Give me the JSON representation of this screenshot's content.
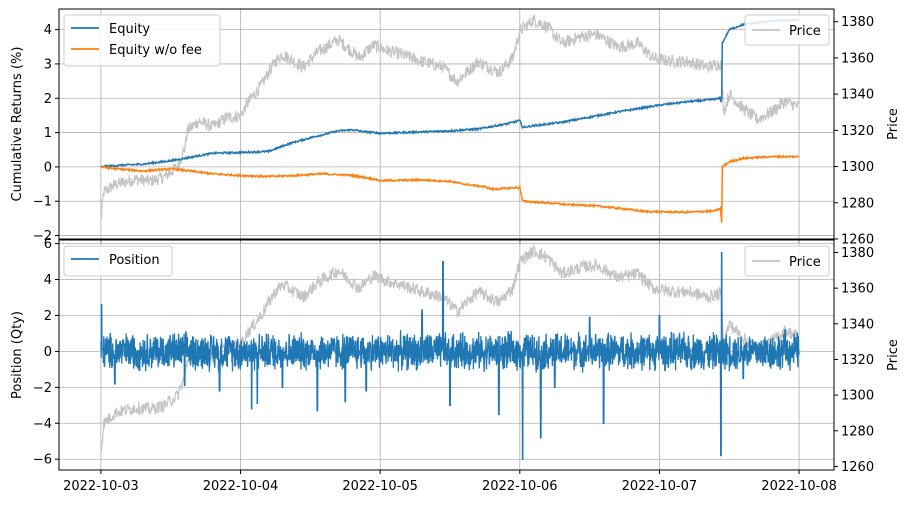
{
  "chart_data": [
    {
      "type": "line",
      "ylabel": "Cumulative Returns (%)",
      "y2label": "Price",
      "ylim": [
        -2.1,
        4.6
      ],
      "y2lim": [
        1260,
        1387
      ],
      "yticks": [
        "−2",
        "−1",
        "0",
        "1",
        "2",
        "3",
        "4"
      ],
      "yticks_values": [
        -2,
        -1,
        0,
        1,
        2,
        3,
        4
      ],
      "y2ticks": [
        "1260",
        "1280",
        "1300",
        "1320",
        "1340",
        "1360",
        "1380"
      ],
      "y2ticks_values": [
        1260,
        1280,
        1300,
        1320,
        1340,
        1360,
        1380
      ],
      "grid": true,
      "legend_left": [
        "Equity",
        "Equity w/o fee"
      ],
      "legend_right": [
        "Price"
      ],
      "legend_left_position": "upper-left",
      "legend_right_position": "upper-right",
      "series": [
        {
          "name": "Equity",
          "color": "#1f77b4",
          "axis": "left",
          "points": [
            [
              0,
              0
            ],
            [
              0.05,
              0.02
            ],
            [
              0.15,
              0.05
            ],
            [
              0.3,
              0.08
            ],
            [
              0.5,
              0.18
            ],
            [
              0.6,
              0.25
            ],
            [
              0.8,
              0.4
            ],
            [
              1.0,
              0.42
            ],
            [
              1.2,
              0.45
            ],
            [
              1.35,
              0.68
            ],
            [
              1.5,
              0.85
            ],
            [
              1.7,
              1.05
            ],
            [
              1.8,
              1.08
            ],
            [
              1.9,
              1.02
            ],
            [
              2.0,
              0.98
            ],
            [
              2.3,
              1.02
            ],
            [
              2.5,
              1.05
            ],
            [
              2.6,
              1.08
            ],
            [
              2.7,
              1.1
            ],
            [
              2.8,
              1.18
            ],
            [
              2.9,
              1.25
            ],
            [
              3.0,
              1.35
            ],
            [
              3.02,
              1.15
            ],
            [
              3.1,
              1.2
            ],
            [
              3.3,
              1.3
            ],
            [
              3.5,
              1.45
            ],
            [
              3.7,
              1.6
            ],
            [
              4.0,
              1.8
            ],
            [
              4.2,
              1.9
            ],
            [
              4.35,
              1.95
            ],
            [
              4.44,
              2.0
            ],
            [
              4.445,
              1.7
            ],
            [
              4.45,
              3.6
            ],
            [
              4.5,
              4.0
            ],
            [
              4.6,
              4.15
            ],
            [
              4.8,
              4.25
            ],
            [
              5.0,
              4.28
            ]
          ]
        },
        {
          "name": "Equity w/o fee",
          "color": "#ff7f0e",
          "axis": "left",
          "points": [
            [
              0,
              0
            ],
            [
              0.1,
              -0.05
            ],
            [
              0.3,
              -0.12
            ],
            [
              0.5,
              -0.06
            ],
            [
              0.6,
              -0.1
            ],
            [
              0.8,
              -0.2
            ],
            [
              1.0,
              -0.25
            ],
            [
              1.2,
              -0.28
            ],
            [
              1.4,
              -0.25
            ],
            [
              1.5,
              -0.22
            ],
            [
              1.6,
              -0.2
            ],
            [
              1.8,
              -0.25
            ],
            [
              1.95,
              -0.35
            ],
            [
              2.0,
              -0.4
            ],
            [
              2.3,
              -0.38
            ],
            [
              2.5,
              -0.42
            ],
            [
              2.6,
              -0.5
            ],
            [
              2.75,
              -0.58
            ],
            [
              2.8,
              -0.65
            ],
            [
              3.0,
              -0.6
            ],
            [
              3.02,
              -1.0
            ],
            [
              3.2,
              -1.05
            ],
            [
              3.35,
              -1.1
            ],
            [
              3.5,
              -1.12
            ],
            [
              3.7,
              -1.2
            ],
            [
              3.9,
              -1.3
            ],
            [
              4.2,
              -1.32
            ],
            [
              4.4,
              -1.28
            ],
            [
              4.44,
              -1.2
            ],
            [
              4.445,
              -1.95
            ],
            [
              4.45,
              0.0
            ],
            [
              4.5,
              0.15
            ],
            [
              4.6,
              0.25
            ],
            [
              4.8,
              0.3
            ],
            [
              5.0,
              0.3
            ]
          ]
        },
        {
          "name": "Price",
          "color": "#c4c4c4",
          "axis": "right",
          "points": [
            [
              0,
              1270
            ],
            [
              0.02,
              1286
            ],
            [
              0.1,
              1290
            ],
            [
              0.25,
              1293
            ],
            [
              0.35,
              1292
            ],
            [
              0.45,
              1294
            ],
            [
              0.55,
              1300
            ],
            [
              0.6,
              1310
            ],
            [
              0.62,
              1320
            ],
            [
              0.7,
              1325
            ],
            [
              0.8,
              1322
            ],
            [
              0.9,
              1327
            ],
            [
              1.0,
              1328
            ],
            [
              1.05,
              1335
            ],
            [
              1.15,
              1345
            ],
            [
              1.2,
              1352
            ],
            [
              1.25,
              1358
            ],
            [
              1.3,
              1362
            ],
            [
              1.45,
              1355
            ],
            [
              1.55,
              1363
            ],
            [
              1.7,
              1370
            ],
            [
              1.85,
              1360
            ],
            [
              1.95,
              1367
            ],
            [
              2.05,
              1364
            ],
            [
              2.15,
              1362
            ],
            [
              2.3,
              1358
            ],
            [
              2.45,
              1355
            ],
            [
              2.55,
              1347
            ],
            [
              2.7,
              1358
            ],
            [
              2.85,
              1352
            ],
            [
              2.95,
              1360
            ],
            [
              3.0,
              1375
            ],
            [
              3.1,
              1381
            ],
            [
              3.2,
              1377
            ],
            [
              3.3,
              1368
            ],
            [
              3.45,
              1372
            ],
            [
              3.55,
              1373
            ],
            [
              3.7,
              1366
            ],
            [
              3.85,
              1368
            ],
            [
              3.95,
              1360
            ],
            [
              4.1,
              1358
            ],
            [
              4.2,
              1358
            ],
            [
              4.35,
              1355
            ],
            [
              4.44,
              1357
            ],
            [
              4.46,
              1330
            ],
            [
              4.5,
              1340
            ],
            [
              4.6,
              1332
            ],
            [
              4.7,
              1326
            ],
            [
              4.8,
              1330
            ],
            [
              4.9,
              1336
            ],
            [
              5.0,
              1333
            ]
          ]
        }
      ]
    },
    {
      "type": "line",
      "ylabel": "Position (Qty)",
      "y2label": "Price",
      "ylim": [
        -6.6,
        6.2
      ],
      "y2lim": [
        1258,
        1387
      ],
      "yticks": [
        "−6",
        "−4",
        "−2",
        "0",
        "2",
        "4",
        "6"
      ],
      "yticks_values": [
        -6,
        -4,
        -2,
        0,
        2,
        4,
        6
      ],
      "y2ticks": [
        "1260",
        "1280",
        "1300",
        "1320",
        "1340",
        "1360",
        "1380"
      ],
      "y2ticks_values": [
        1260,
        1280,
        1300,
        1320,
        1340,
        1360,
        1380
      ],
      "xticks": [
        "2022-10-03",
        "2022-10-04",
        "2022-10-05",
        "2022-10-06",
        "2022-10-07",
        "2022-10-08"
      ],
      "xticks_values": [
        0,
        1,
        2,
        3,
        4,
        5
      ],
      "grid": true,
      "legend_left": [
        "Position"
      ],
      "legend_right": [
        "Price"
      ],
      "legend_left_position": "upper-left",
      "legend_right_position": "upper-right",
      "series": [
        {
          "name": "Position",
          "color": "#1f77b4",
          "axis": "left",
          "amplitude": 1.2,
          "spikes": [
            [
              0.005,
              2.6
            ],
            [
              0.1,
              -1.8
            ],
            [
              0.6,
              -1.9
            ],
            [
              0.85,
              -2.2
            ],
            [
              1.08,
              -3.2
            ],
            [
              1.12,
              -2.9
            ],
            [
              1.3,
              -2.0
            ],
            [
              1.55,
              -3.3
            ],
            [
              1.75,
              -2.8
            ],
            [
              1.9,
              -2.2
            ],
            [
              2.3,
              2.3
            ],
            [
              2.45,
              5.0
            ],
            [
              2.5,
              -3.0
            ],
            [
              2.85,
              -3.5
            ],
            [
              3.02,
              -6.0
            ],
            [
              3.15,
              -4.8
            ],
            [
              3.25,
              -2.0
            ],
            [
              3.5,
              1.9
            ],
            [
              3.6,
              -4.0
            ],
            [
              4.0,
              2.0
            ],
            [
              4.44,
              -5.8
            ],
            [
              4.445,
              5.5
            ],
            [
              4.6,
              -1.5
            ],
            [
              4.9,
              1.2
            ]
          ]
        },
        {
          "name": "Price",
          "color": "#c4c4c4",
          "axis": "right",
          "points": [
            [
              0,
              1268
            ],
            [
              0.02,
              1284
            ],
            [
              0.1,
              1290
            ],
            [
              0.25,
              1293
            ],
            [
              0.35,
              1292
            ],
            [
              0.45,
              1294
            ],
            [
              0.55,
              1300
            ],
            [
              0.6,
              1310
            ],
            [
              0.62,
              1320
            ],
            [
              0.7,
              1325
            ],
            [
              0.8,
              1322
            ],
            [
              0.9,
              1327
            ],
            [
              1.0,
              1328
            ],
            [
              1.05,
              1335
            ],
            [
              1.15,
              1345
            ],
            [
              1.2,
              1352
            ],
            [
              1.25,
              1358
            ],
            [
              1.3,
              1362
            ],
            [
              1.45,
              1355
            ],
            [
              1.55,
              1363
            ],
            [
              1.7,
              1370
            ],
            [
              1.85,
              1360
            ],
            [
              1.95,
              1367
            ],
            [
              2.05,
              1364
            ],
            [
              2.15,
              1362
            ],
            [
              2.3,
              1358
            ],
            [
              2.45,
              1355
            ],
            [
              2.55,
              1347
            ],
            [
              2.7,
              1358
            ],
            [
              2.85,
              1352
            ],
            [
              2.95,
              1360
            ],
            [
              3.0,
              1375
            ],
            [
              3.1,
              1381
            ],
            [
              3.2,
              1377
            ],
            [
              3.3,
              1368
            ],
            [
              3.45,
              1372
            ],
            [
              3.55,
              1373
            ],
            [
              3.7,
              1366
            ],
            [
              3.85,
              1368
            ],
            [
              3.95,
              1360
            ],
            [
              4.1,
              1358
            ],
            [
              4.2,
              1358
            ],
            [
              4.35,
              1355
            ],
            [
              4.44,
              1357
            ],
            [
              4.46,
              1330
            ],
            [
              4.5,
              1340
            ],
            [
              4.6,
              1332
            ],
            [
              4.7,
              1326
            ],
            [
              4.8,
              1330
            ],
            [
              4.9,
              1336
            ],
            [
              5.0,
              1333
            ]
          ]
        }
      ]
    }
  ]
}
